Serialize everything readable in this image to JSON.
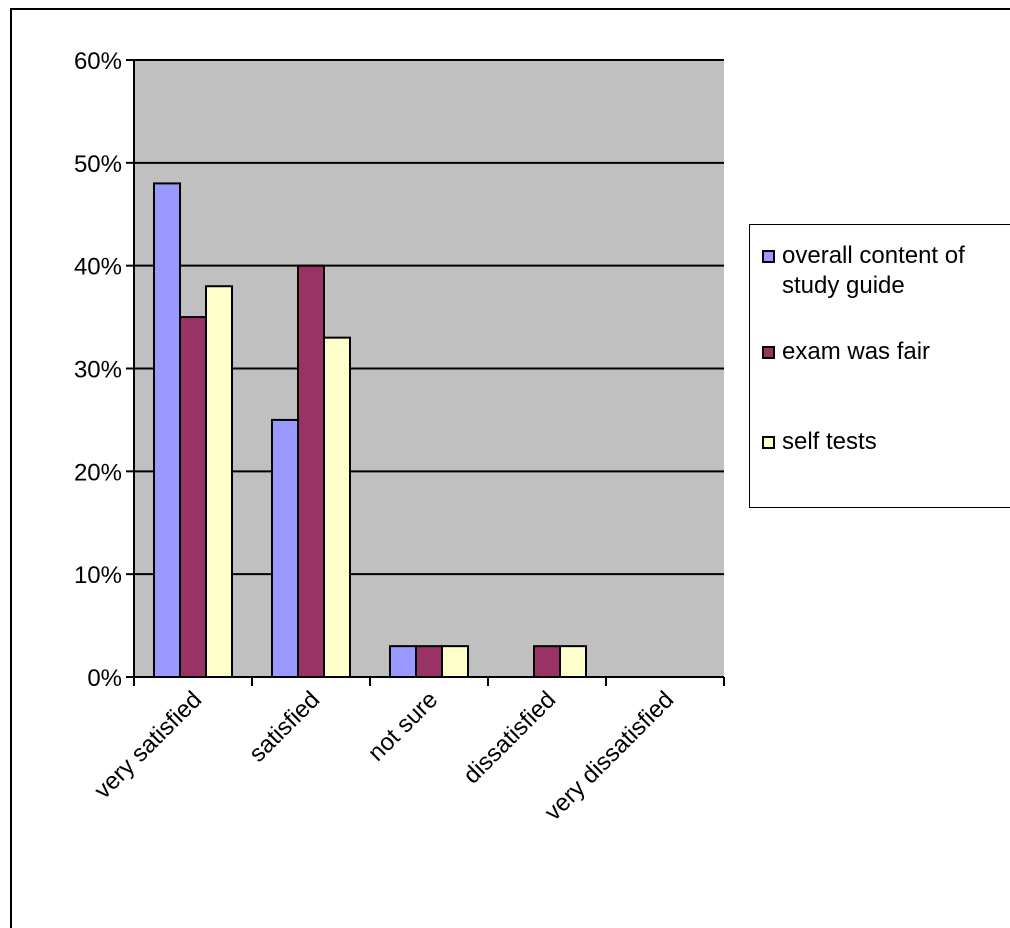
{
  "chart_data": {
    "type": "bar",
    "categories": [
      "very satisfied",
      "satisfied",
      "not sure",
      "dissatisfied",
      "very dissatisfied"
    ],
    "series": [
      {
        "name": "overall content of study guide",
        "color": "#9999ff",
        "values": [
          48,
          25,
          3,
          0,
          0
        ]
      },
      {
        "name": "exam was fair",
        "color": "#993366",
        "values": [
          35,
          40,
          3,
          3,
          0
        ]
      },
      {
        "name": "self tests",
        "color": "#ffffcc",
        "values": [
          38,
          33,
          3,
          3,
          0
        ]
      }
    ],
    "yticks": [
      "0%",
      "10%",
      "20%",
      "30%",
      "40%",
      "50%",
      "60%"
    ],
    "ylim": [
      0,
      60
    ],
    "plot_background": "#c0c0c0",
    "grid": true,
    "legend_position": "right"
  }
}
